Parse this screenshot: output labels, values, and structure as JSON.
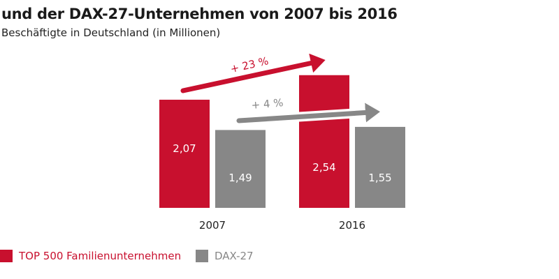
{
  "chart_data": {
    "type": "bar",
    "title": "und der DAX-27-Unternehmen von 2007 bis 2016",
    "subtitle": "Beschäftigte in Deutschland (in Millionen)",
    "categories": [
      "2007",
      "2016"
    ],
    "series": [
      {
        "name": "TOP 500 Familienunternehmen",
        "color": "#c8102e",
        "values": [
          2.07,
          2.54
        ],
        "labels": [
          "2,07",
          "2,54"
        ]
      },
      {
        "name": "DAX-27",
        "color": "#878787",
        "values": [
          1.49,
          1.55
        ],
        "labels": [
          "1,49",
          "1,55"
        ]
      }
    ],
    "annotations": [
      {
        "text": "+ 23 %",
        "series": 0,
        "color": "#c8102e"
      },
      {
        "text": "+ 4 %",
        "series": 1,
        "color": "#878787"
      }
    ],
    "ylabel": "",
    "xlabel": "",
    "ylim": [
      0,
      2.6
    ],
    "grid": false,
    "legend": "bottom-left"
  }
}
